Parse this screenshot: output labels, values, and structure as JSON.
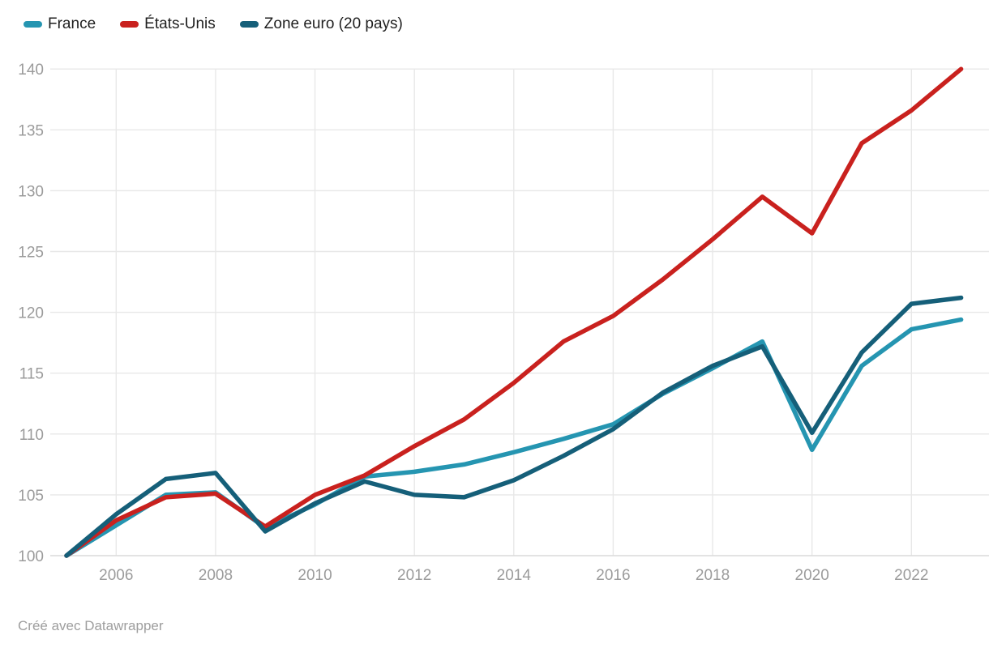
{
  "legend": {
    "items": [
      {
        "label": "France",
        "color": "#2595b1"
      },
      {
        "label": "États-Unis",
        "color": "#c9211e"
      },
      {
        "label": "Zone euro (20 pays)",
        "color": "#155f79"
      }
    ]
  },
  "footer": {
    "credit": "Créé avec Datawrapper"
  },
  "colors": {
    "grid": "#e8e8e8",
    "baseline": "#dadada",
    "tick_text": "#9b9b9b",
    "legend_text": "#1f1f1f",
    "background": "#ffffff"
  },
  "chart_data": {
    "type": "line",
    "title": "",
    "xlabel": "",
    "ylabel": "",
    "x": [
      2005,
      2006,
      2007,
      2008,
      2009,
      2010,
      2011,
      2012,
      2013,
      2014,
      2015,
      2016,
      2017,
      2018,
      2019,
      2020,
      2021,
      2022,
      2023
    ],
    "series": [
      {
        "name": "France",
        "color": "#2595b1",
        "values": [
          100,
          102.5,
          105.0,
          105.2,
          102.3,
          104.2,
          106.5,
          106.9,
          107.5,
          108.5,
          109.6,
          110.8,
          113.3,
          115.4,
          117.6,
          108.7,
          115.6,
          118.6,
          119.4
        ]
      },
      {
        "name": "États-Unis",
        "color": "#c9211e",
        "values": [
          100,
          102.9,
          104.8,
          105.1,
          102.4,
          105.0,
          106.6,
          109.0,
          111.2,
          114.2,
          117.6,
          119.7,
          122.7,
          126.0,
          129.5,
          126.5,
          133.9,
          136.6,
          140.0
        ]
      },
      {
        "name": "Zone euro (20 pays)",
        "color": "#155f79",
        "values": [
          100,
          103.4,
          106.3,
          106.8,
          102.0,
          104.3,
          106.1,
          105.0,
          104.8,
          106.2,
          108.2,
          110.4,
          113.4,
          115.6,
          117.2,
          110.1,
          116.7,
          120.7,
          121.2
        ]
      }
    ],
    "xlim": [
      2005,
      2023
    ],
    "ylim": [
      100,
      140
    ],
    "yticks": [
      100,
      105,
      110,
      115,
      120,
      125,
      130,
      135,
      140
    ],
    "xticks": [
      2006,
      2008,
      2010,
      2012,
      2014,
      2016,
      2018,
      2020,
      2022
    ],
    "grid": true,
    "legend_position": "top-left",
    "line_width": 5.5
  }
}
